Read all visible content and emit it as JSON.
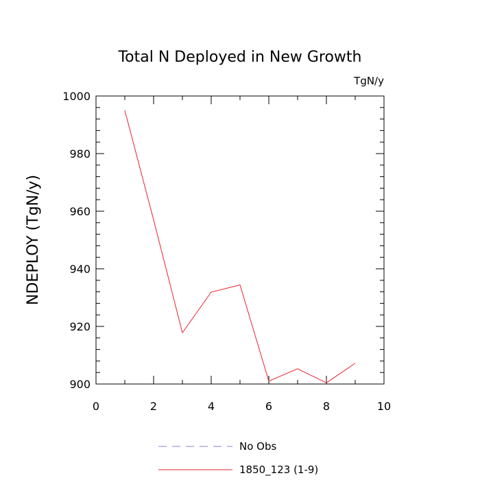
{
  "chart_data": {
    "type": "line",
    "title": "Total N Deployed in New Growth",
    "units_label": "TgN/y",
    "xlabel": "",
    "ylabel": "NDEPLOY  (TgN/y)",
    "xlim": [
      0,
      10
    ],
    "ylim": [
      900,
      1000
    ],
    "x_ticks": [
      0,
      2,
      4,
      6,
      8,
      10
    ],
    "y_ticks": [
      900,
      920,
      940,
      960,
      980,
      1000
    ],
    "grid": false,
    "legend_position": "bottom-center",
    "series": [
      {
        "name": "No Obs",
        "style": "dashed",
        "color": "#8080e0",
        "x": [],
        "y": []
      },
      {
        "name": "1850_123 (1-9)",
        "style": "solid",
        "color": "#e8202a",
        "x": [
          1,
          2,
          3,
          4,
          5,
          6,
          7,
          8,
          9
        ],
        "y": [
          995,
          957,
          917.8,
          931.9,
          934.4,
          901.0,
          905.3,
          900.4,
          907.2
        ]
      }
    ]
  }
}
